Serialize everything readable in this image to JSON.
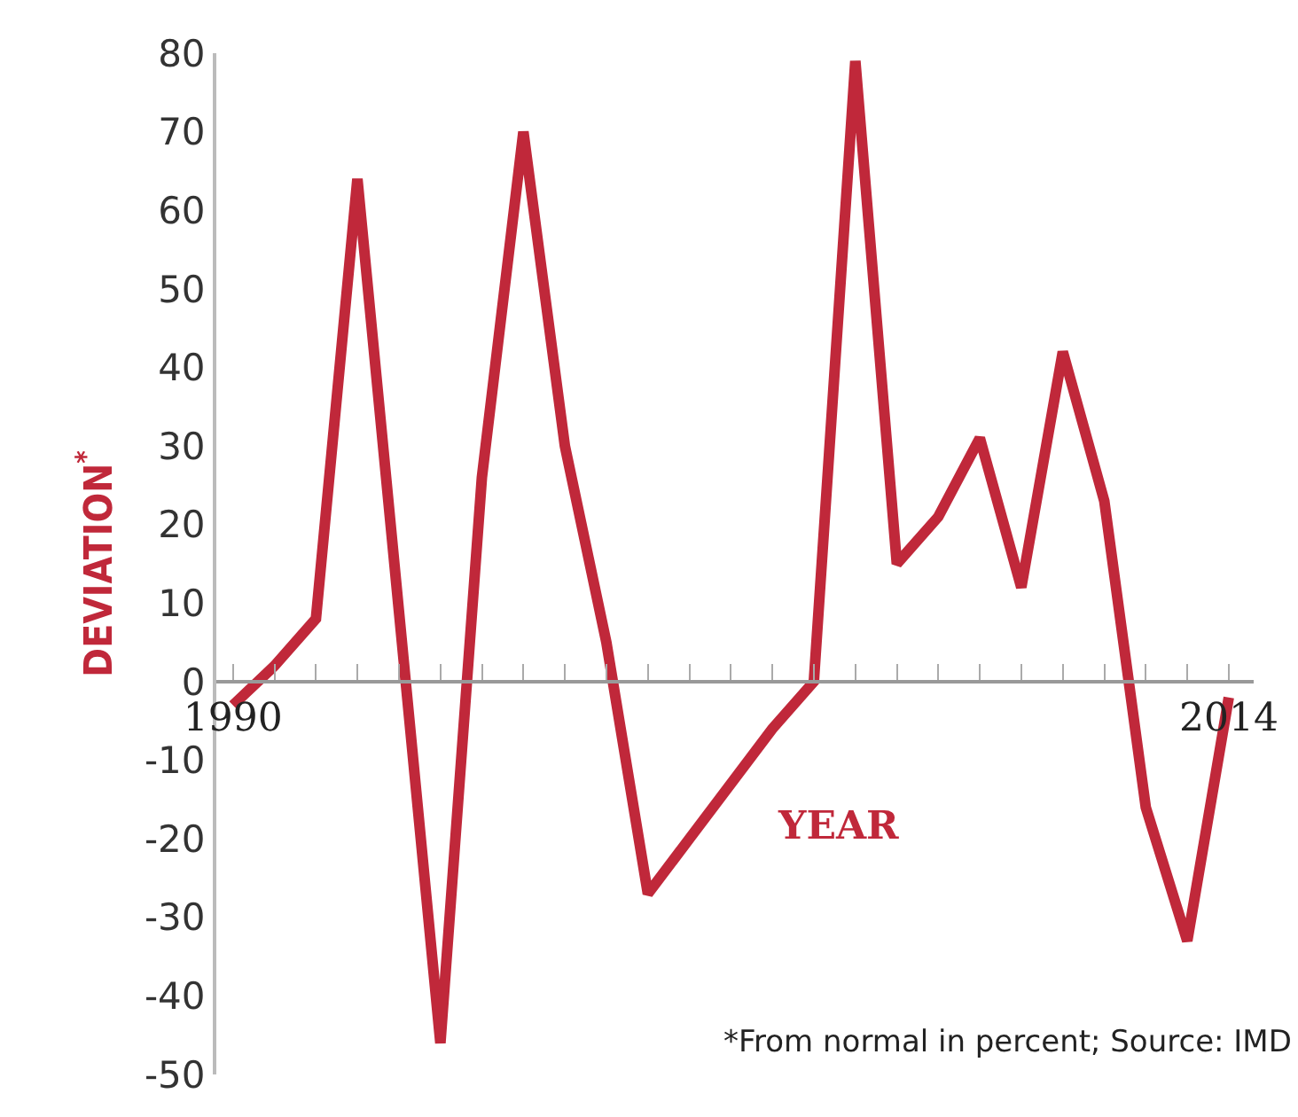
{
  "chart_data": {
    "type": "line",
    "ylabel": "DEVIATION$^{*}$",
    "xlabel": "YEAR",
    "x": [
      1990,
      1991,
      1992,
      1993,
      1994,
      1995,
      1996,
      1997,
      1998,
      1999,
      2000,
      2001,
      2002,
      2003,
      2004,
      2005,
      2006,
      2007,
      2008,
      2009,
      2010,
      2011,
      2012,
      2013,
      2014
    ],
    "series": [
      {
        "color": "#c0283a",
        "values": [
          -3,
          2,
          8,
          64,
          9,
          -46,
          26,
          70,
          30,
          5,
          -27,
          -20,
          -13,
          -6,
          0,
          79,
          15,
          21,
          31,
          12,
          42,
          23,
          -16,
          -33,
          -2
        ]
      }
    ],
    "xlim": [
      1989.6,
      2014.6
    ],
    "xticks": [
      1990,
      {
        "value": 1991,
        "label": null
      },
      {
        "value": 1992,
        "label": null
      },
      {
        "value": 1993,
        "label": null
      },
      {
        "value": 1994,
        "label": null
      },
      {
        "value": 1995,
        "label": null
      },
      {
        "value": 1996,
        "label": null
      },
      {
        "value": 1997,
        "label": null
      },
      {
        "value": 1998,
        "label": null
      },
      {
        "value": 1999,
        "label": null
      },
      {
        "value": 2000,
        "label": null
      },
      {
        "value": 2001,
        "label": null
      },
      {
        "value": 2002,
        "label": null
      },
      {
        "value": 2003,
        "label": null
      },
      {
        "value": 2004,
        "label": null
      },
      {
        "value": 2005,
        "label": null
      },
      {
        "value": 2006,
        "label": null
      },
      {
        "value": 2007,
        "label": null
      },
      {
        "value": 2008,
        "label": null
      },
      {
        "value": 2009,
        "label": null
      },
      {
        "value": 2010,
        "label": null
      },
      {
        "value": 2011,
        "label": null
      },
      {
        "value": 2012,
        "label": null
      },
      {
        "value": 2013,
        "label": null
      },
      2014
    ],
    "ylim": [
      -50,
      80
    ],
    "yticks": [
      -50,
      -40,
      -30,
      -20,
      -10,
      0,
      10,
      20,
      30,
      40,
      50,
      60,
      70,
      80
    ],
    "marker": "none",
    "line_style": "solid",
    "annotations": [
      "*From normal in percent; Source: IMD"
    ]
  }
}
